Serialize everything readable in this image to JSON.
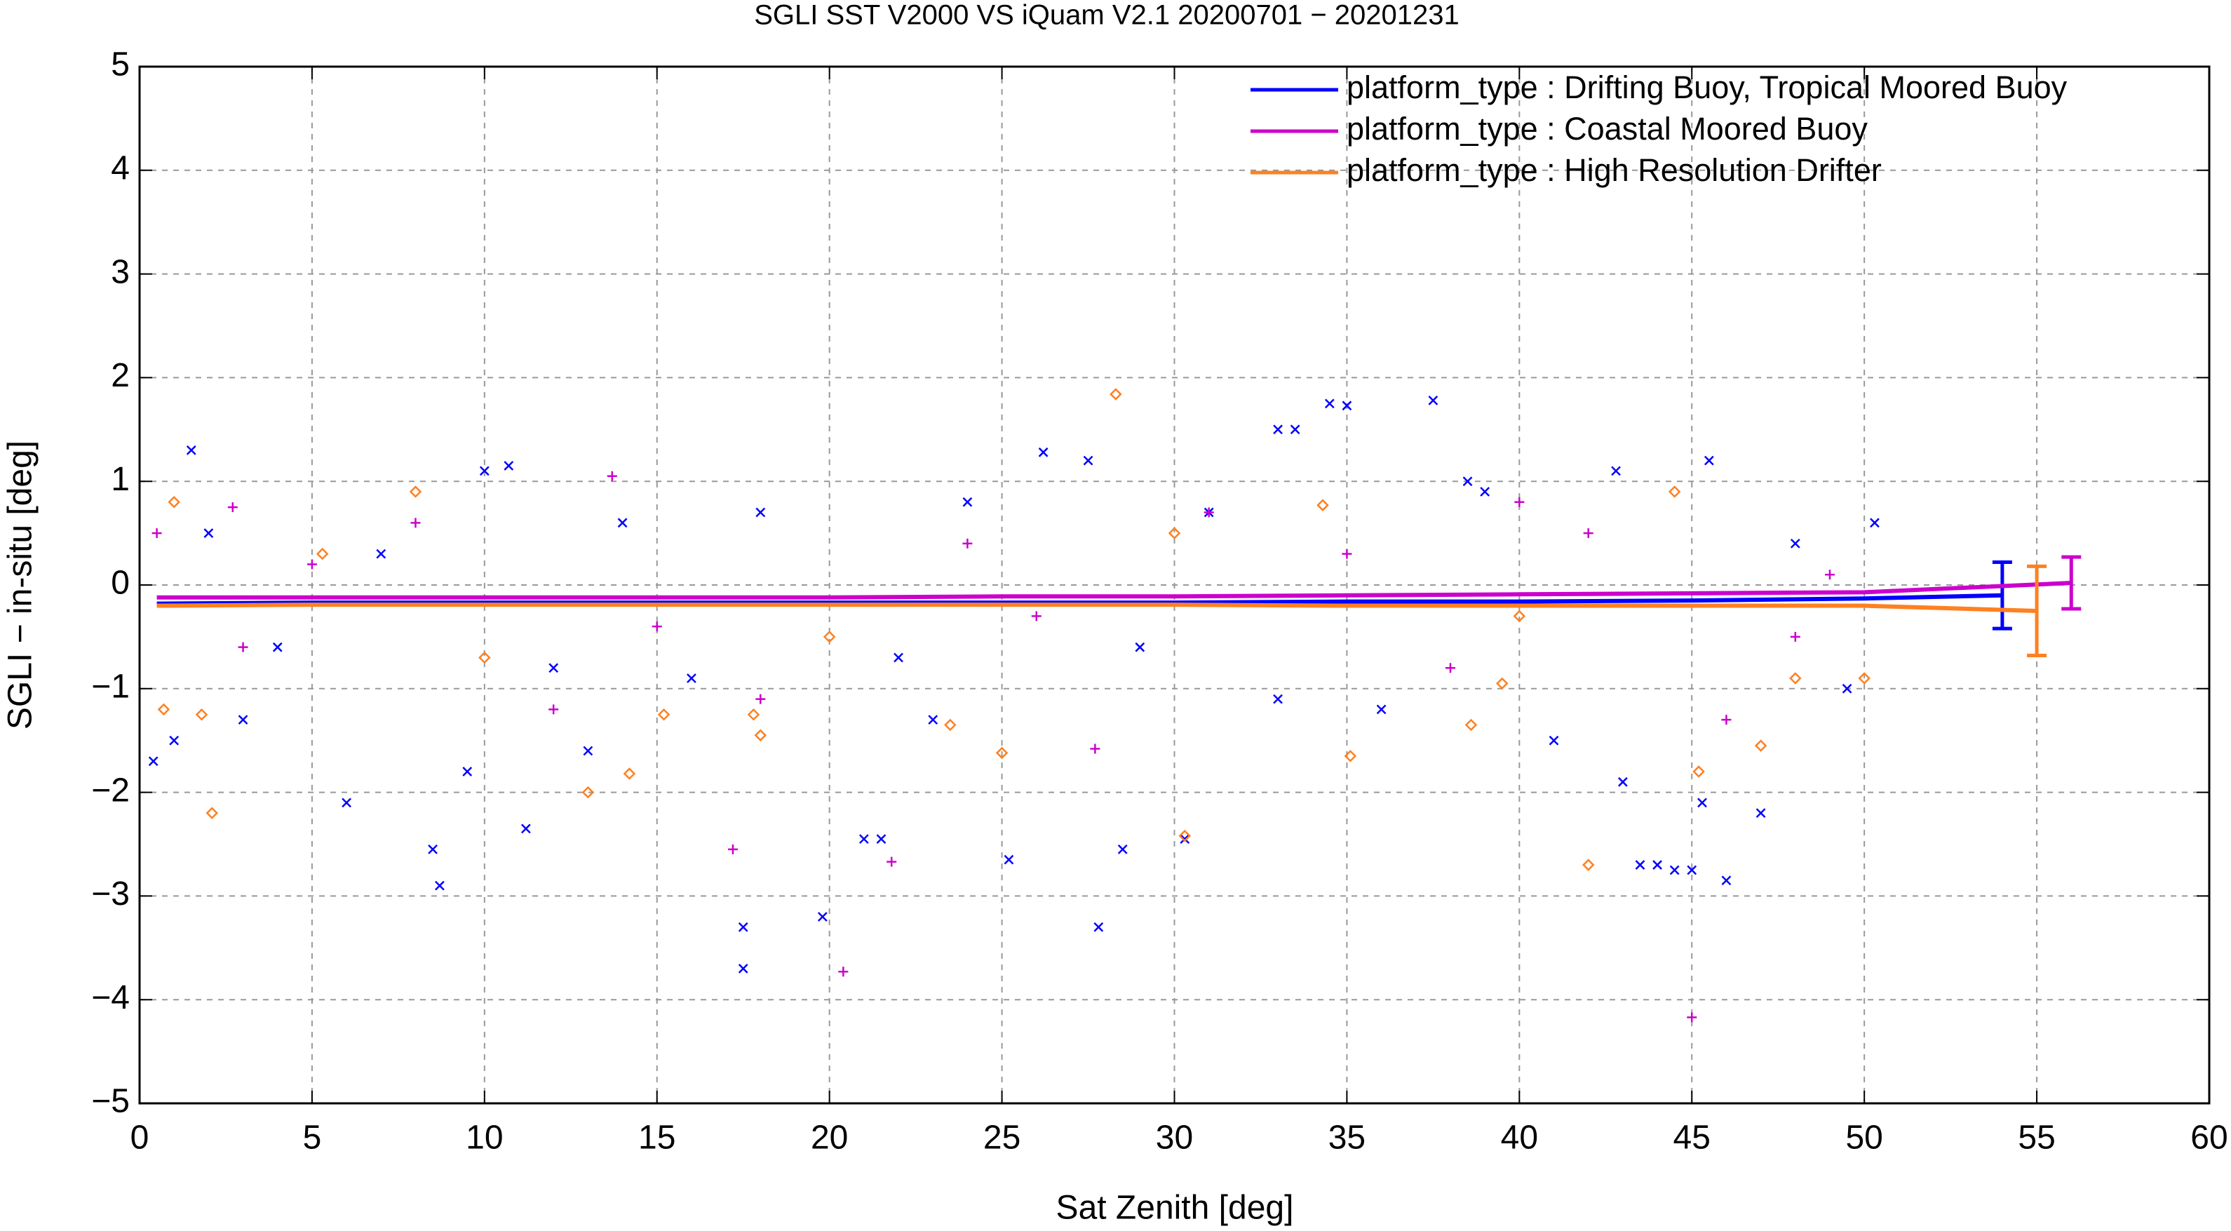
{
  "chart_data": {
    "type": "scatter",
    "title": "SGLI SST V2000 VS iQuam V2.1 20200701 − 20201231",
    "x_label": "Sat Zenith [deg]",
    "y_label": "SGLI − in-situ [deg]",
    "xlim": [
      0,
      60
    ],
    "xticks": [
      0,
      5,
      10,
      15,
      20,
      25,
      30,
      35,
      40,
      45,
      50,
      55,
      60
    ],
    "ylim": [
      -5,
      5
    ],
    "yticks": [
      {
        "value": -5,
        "label": "−5"
      },
      {
        "value": -4,
        "label": "−4"
      },
      {
        "value": -3,
        "label": "−3"
      },
      {
        "value": -2,
        "label": "−2"
      },
      {
        "value": -1,
        "label": "−1"
      },
      0,
      1,
      2,
      3,
      4,
      5
    ],
    "grid": true,
    "legend": "upper right",
    "series": [
      {
        "name": "platform_type : Drifting Buoy, Tropical Moored Buoy",
        "color": "#0000ff",
        "marker": "x",
        "x": [
          0.5,
          5,
          10,
          15,
          20,
          25,
          30,
          35,
          40,
          45,
          50,
          54
        ],
        "values": [
          -0.18,
          -0.17,
          -0.17,
          -0.17,
          -0.17,
          -0.17,
          -0.17,
          -0.16,
          -0.16,
          -0.15,
          -0.13,
          -0.1
        ],
        "error_bar": {
          "x": 54,
          "value": -0.1,
          "error": 0.32
        },
        "points": {
          "x": [
            1.5,
            0.4,
            1,
            6,
            8.7,
            8.5,
            11.2,
            9.5,
            10,
            10.7,
            17.5,
            17.5,
            19.8,
            21,
            21.5,
            25.2,
            26.2,
            27.5,
            28.5,
            27.8,
            30.3,
            33,
            33.5,
            34.5,
            35,
            37.5,
            38.5,
            42.8,
            43.5,
            44,
            44.5,
            45,
            45.3,
            45.5,
            46,
            47,
            49.5,
            50.3,
            2,
            4,
            7,
            12,
            14,
            16,
            18,
            22,
            24,
            29,
            31,
            36,
            39,
            41,
            48,
            3,
            13,
            23,
            33,
            43
          ],
          "y": [
            1.3,
            -1.7,
            -1.5,
            -2.1,
            -2.9,
            -2.55,
            -2.35,
            -1.8,
            1.1,
            1.15,
            -3.3,
            -3.7,
            -3.2,
            -2.45,
            -2.45,
            -2.65,
            1.28,
            1.2,
            -2.55,
            -3.3,
            -2.45,
            1.5,
            1.5,
            1.75,
            1.73,
            1.78,
            1.0,
            1.1,
            -2.7,
            -2.7,
            -2.75,
            -2.75,
            -2.1,
            1.2,
            -2.85,
            -2.2,
            -1.0,
            0.6,
            0.5,
            -0.6,
            0.3,
            -0.8,
            0.6,
            -0.9,
            0.7,
            -0.7,
            0.8,
            -0.6,
            0.7,
            -1.2,
            0.9,
            -1.5,
            0.4,
            -1.3,
            -1.6,
            -1.3,
            -1.1,
            -1.9
          ]
        }
      },
      {
        "name": "platform_type : Coastal Moored Buoy",
        "color": "#cc00cc",
        "marker": "+",
        "x": [
          0.5,
          5,
          10,
          15,
          20,
          25,
          30,
          35,
          40,
          45,
          50,
          56
        ],
        "values": [
          -0.12,
          -0.12,
          -0.12,
          -0.12,
          -0.12,
          -0.11,
          -0.11,
          -0.1,
          -0.09,
          -0.08,
          -0.07,
          0.02
        ],
        "error_bar": {
          "x": 56,
          "value": 0.02,
          "error": 0.25
        },
        "points": {
          "x": [
            0.5,
            2.7,
            13.7,
            17.2,
            18,
            20.4,
            21.8,
            27.7,
            45,
            31,
            8,
            12,
            26,
            35,
            40,
            46,
            48,
            5,
            15,
            24,
            38,
            42,
            49,
            3
          ],
          "y": [
            0.5,
            0.75,
            1.05,
            -2.55,
            -1.1,
            -3.73,
            -2.67,
            -1.58,
            -4.17,
            0.7,
            0.6,
            -1.2,
            -0.3,
            0.3,
            0.8,
            -1.3,
            -0.5,
            0.2,
            -0.4,
            0.4,
            -0.8,
            0.5,
            0.1,
            -0.6
          ]
        }
      },
      {
        "name": "platform_type : High Resolution Drifter",
        "color": "#ff8020",
        "marker": "diamond",
        "x": [
          0.5,
          5,
          10,
          15,
          20,
          25,
          30,
          35,
          40,
          45,
          50,
          55
        ],
        "values": [
          -0.2,
          -0.19,
          -0.19,
          -0.19,
          -0.19,
          -0.19,
          -0.19,
          -0.2,
          -0.2,
          -0.2,
          -0.2,
          -0.25
        ],
        "error_bar": {
          "x": 55,
          "value": -0.25,
          "error": 0.43
        },
        "points": {
          "x": [
            0.7,
            2.1,
            1.8,
            8,
            13,
            14.2,
            15.2,
            17.8,
            18,
            23.5,
            25,
            28.3,
            30.3,
            34.3,
            35.1,
            42,
            44.5,
            45.2,
            47,
            38.6,
            39.5,
            5.3,
            10,
            20,
            30,
            40,
            50,
            48,
            1
          ],
          "y": [
            -1.2,
            -2.2,
            -1.25,
            0.9,
            -2.0,
            -1.82,
            -1.25,
            -1.25,
            -1.45,
            -1.35,
            -1.62,
            1.84,
            -2.42,
            0.77,
            -1.65,
            -2.7,
            0.9,
            -1.8,
            -1.55,
            -1.35,
            -0.95,
            0.3,
            -0.7,
            -0.5,
            0.5,
            -0.3,
            -0.9,
            -0.9,
            0.8
          ]
        }
      }
    ]
  }
}
